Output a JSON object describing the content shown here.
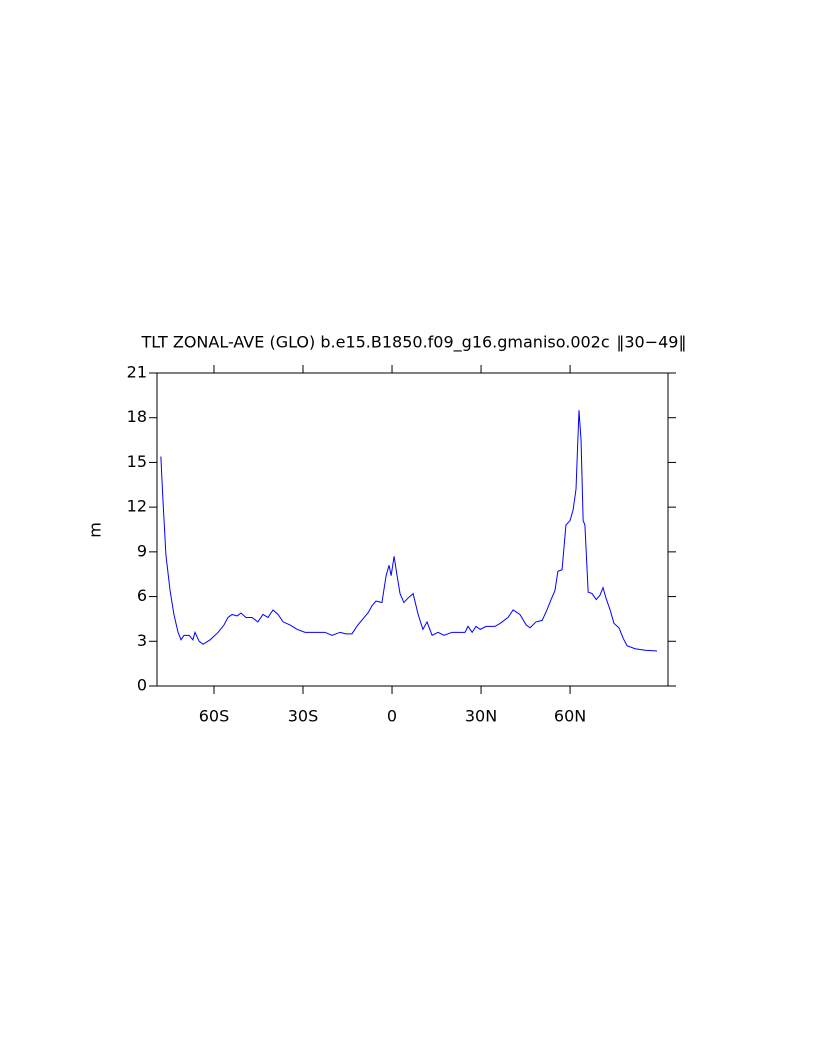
{
  "chart_data": {
    "type": "line",
    "title": "TLT ZONAL-AVE (GLO) b.e15.B1850.f09_g16.gmaniso.002c  ‖30−49‖",
    "y_label": "m",
    "xlim": [
      -79.2,
      93
    ],
    "ylim": [
      0,
      21
    ],
    "xticks": [
      {
        "value": -60,
        "label": "60S"
      },
      {
        "value": -30,
        "label": "30S"
      },
      0,
      {
        "value": 30,
        "label": "30N"
      },
      {
        "value": 60,
        "label": "60N"
      }
    ],
    "yticks": [
      0,
      3,
      6,
      9,
      12,
      15,
      18,
      21
    ],
    "series": [
      {
        "color": "#0000ff",
        "x": [
          -77.9,
          -77.2,
          -76.2,
          -74.8,
          -73.5,
          -72.1,
          -71.1,
          -70.1,
          -68.4,
          -67.1,
          -66.4,
          -65.0,
          -63.7,
          -61.3,
          -58.6,
          -56.6,
          -55.3,
          -53.9,
          -52.2,
          -50.9,
          -49.2,
          -47.2,
          -45.2,
          -43.5,
          -41.8,
          -40.1,
          -38.4,
          -36.7,
          -34.4,
          -32.0,
          -29.3,
          -26.0,
          -22.6,
          -20.2,
          -17.5,
          -15.5,
          -13.5,
          -11.5,
          -9.4,
          -8.1,
          -6.7,
          -5.4,
          -3.4,
          -2.0,
          -1.0,
          -0.3,
          0.7,
          1.7,
          2.7,
          4.0,
          5.4,
          7.1,
          8.8,
          10.4,
          11.8,
          13.5,
          15.5,
          17.5,
          20.2,
          22.9,
          24.6,
          25.6,
          27.0,
          28.3,
          29.7,
          31.7,
          34.7,
          36.4,
          39.1,
          40.8,
          43.1,
          45.2,
          46.5,
          48.5,
          50.6,
          52.2,
          53.6,
          54.9,
          55.9,
          57.3,
          58.6,
          60.0,
          61.0,
          62.0,
          63.0,
          63.7,
          64.4,
          65.0,
          66.1,
          67.4,
          68.8,
          70.1,
          71.1,
          72.1,
          73.5,
          74.8,
          76.5,
          77.9,
          79.2,
          81.9,
          85.3,
          89.3
        ],
        "values": [
          15.4,
          12.5,
          8.8,
          6.4,
          4.8,
          3.6,
          3.1,
          3.4,
          3.4,
          3.1,
          3.6,
          3.0,
          2.8,
          3.1,
          3.6,
          4.1,
          4.6,
          4.8,
          4.7,
          4.9,
          4.6,
          4.6,
          4.3,
          4.8,
          4.6,
          5.1,
          4.8,
          4.3,
          4.1,
          3.8,
          3.6,
          3.6,
          3.6,
          3.4,
          3.6,
          3.5,
          3.5,
          4.1,
          4.6,
          4.9,
          5.4,
          5.7,
          5.6,
          7.4,
          8.1,
          7.4,
          8.7,
          7.4,
          6.2,
          5.6,
          5.9,
          6.2,
          4.8,
          3.8,
          4.3,
          3.4,
          3.6,
          3.4,
          3.6,
          3.6,
          3.6,
          4.0,
          3.6,
          4.0,
          3.8,
          4.0,
          4.0,
          4.2,
          4.6,
          5.1,
          4.8,
          4.1,
          3.9,
          4.3,
          4.4,
          5.1,
          5.8,
          6.4,
          7.7,
          7.8,
          10.8,
          11.1,
          11.8,
          13.2,
          18.5,
          16.5,
          11.1,
          10.8,
          6.3,
          6.2,
          5.8,
          6.1,
          6.6,
          5.9,
          5.1,
          4.2,
          3.9,
          3.2,
          2.7,
          2.5,
          2.4,
          2.35
        ]
      }
    ]
  }
}
